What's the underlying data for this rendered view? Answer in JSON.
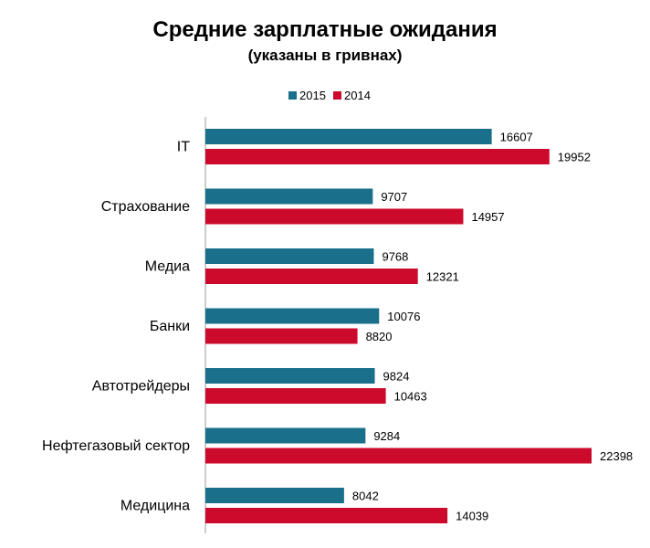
{
  "chart_data": {
    "type": "bar",
    "orientation": "horizontal",
    "title": "Средние зарплатные ожидания",
    "subtitle": "(указаны в гривнах)",
    "categories": [
      "IT",
      "Страхование",
      "Медиа",
      "Банки",
      "Автотрейдеры",
      "Нефтегазовый сектор",
      "Медицина"
    ],
    "series": [
      {
        "name": "2015",
        "color": "#1a6f8a",
        "values": [
          16607,
          9707,
          9768,
          10076,
          9824,
          9284,
          8042
        ]
      },
      {
        "name": "2014",
        "color": "#cc0a2c",
        "values": [
          19952,
          14957,
          12321,
          8820,
          10463,
          22398,
          14039
        ]
      }
    ],
    "xlim": [
      0,
      22398
    ],
    "grid": false,
    "legend": "top",
    "data_labels": true
  }
}
